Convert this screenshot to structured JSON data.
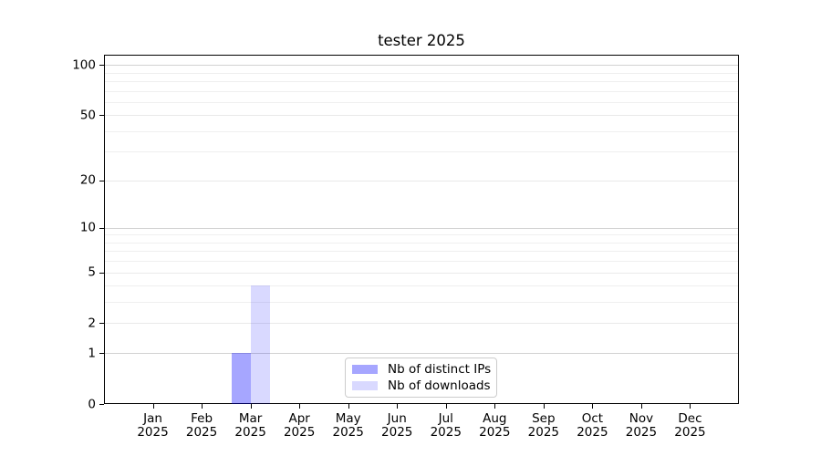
{
  "chart_data": {
    "type": "bar",
    "title": "tester 2025",
    "categories": [
      "Jan",
      "Feb",
      "Mar",
      "Apr",
      "May",
      "Jun",
      "Jul",
      "Aug",
      "Sep",
      "Oct",
      "Nov",
      "Dec"
    ],
    "category_year": "2025",
    "series": [
      {
        "name": "Nb of distinct IPs",
        "color": "rgba(0,0,255,0.35)",
        "values": [
          0,
          0,
          1,
          0,
          0,
          0,
          0,
          0,
          0,
          0,
          0,
          0
        ]
      },
      {
        "name": "Nb of downloads",
        "color": "rgba(0,0,255,0.15)",
        "values": [
          0,
          0,
          4,
          0,
          0,
          0,
          0,
          0,
          0,
          0,
          0,
          0
        ]
      }
    ],
    "y_axis": {
      "scale": "log10(value+1)",
      "ticks": [
        0,
        1,
        2,
        5,
        10,
        20,
        50,
        100
      ],
      "decade_ticks": [
        1,
        10,
        100
      ],
      "minor_gridlines": [
        3,
        4,
        6,
        7,
        8,
        9,
        30,
        40,
        60,
        70,
        80,
        90
      ],
      "min": 0,
      "max": 115
    },
    "xlabel": "",
    "ylabel": "",
    "grid": true,
    "legend_position": "lower-center-inside"
  }
}
